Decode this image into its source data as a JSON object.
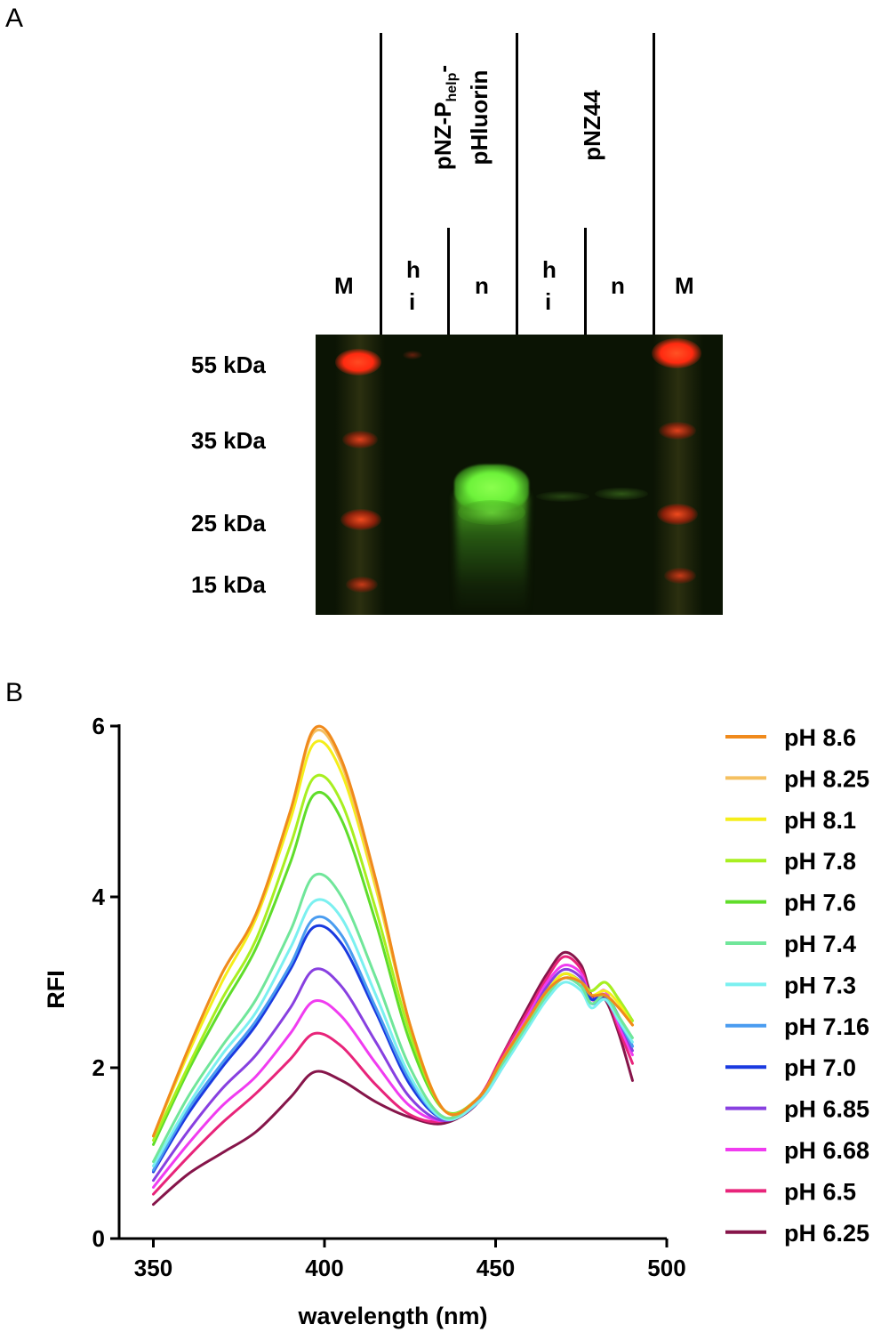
{
  "panelA": {
    "label": "A",
    "construct1": {
      "line1_pre": "pNZ-P",
      "line1_sub": "help",
      "line1_post": "-",
      "line2": "pHluorin"
    },
    "construct2": "pNZ44",
    "lanes": [
      "M",
      "h i",
      "n",
      "h i",
      "n",
      "M"
    ],
    "lane_marker": "M",
    "lane_hi_top": "h",
    "lane_hi_bottom": "i",
    "lane_n": "n",
    "mw_markers": [
      "55 kDa",
      "35 kDa",
      "25 kDa",
      "15 kDa"
    ],
    "colors": {
      "gel_background": "#0b1404",
      "marker_band": "#ff3a1a",
      "gfp_band": "#6dff3a"
    }
  },
  "panelB": {
    "label": "B",
    "chart_data": {
      "type": "line",
      "xlabel": "wavelength (nm)",
      "ylabel": "RFI",
      "xlim": [
        340,
        500
      ],
      "ylim": [
        0,
        6
      ],
      "xticks": [
        350,
        400,
        450,
        500
      ],
      "yticks": [
        0,
        2,
        4,
        6
      ],
      "x_range": [
        350,
        490
      ],
      "grid": false,
      "legend_position": "right",
      "key_x": [
        350,
        360,
        370,
        380,
        390,
        397,
        405,
        415,
        425,
        435,
        445,
        452,
        460,
        465,
        470,
        475,
        478,
        482,
        486,
        490
      ],
      "series": [
        {
          "name": "pH 8.6",
          "color": "#f08a1c",
          "values": [
            1.2,
            2.2,
            3.1,
            3.8,
            5.0,
            5.97,
            5.6,
            4.2,
            2.5,
            1.5,
            1.65,
            2.1,
            2.6,
            2.9,
            3.05,
            3.0,
            2.85,
            2.85,
            2.7,
            2.5
          ]
        },
        {
          "name": "pH 8.25",
          "color": "#f5c060",
          "values": [
            1.2,
            2.2,
            3.1,
            3.8,
            5.0,
            5.93,
            5.55,
            4.15,
            2.5,
            1.5,
            1.65,
            2.1,
            2.6,
            2.9,
            3.05,
            3.0,
            2.85,
            2.85,
            2.7,
            2.5
          ]
        },
        {
          "name": "pH 8.1",
          "color": "#f5ee1a",
          "values": [
            1.2,
            2.15,
            3.0,
            3.75,
            4.9,
            5.8,
            5.45,
            4.1,
            2.5,
            1.5,
            1.65,
            2.1,
            2.6,
            2.9,
            3.1,
            3.0,
            2.85,
            2.9,
            2.75,
            2.5
          ]
        },
        {
          "name": "pH 7.8",
          "color": "#a8ef20",
          "values": [
            1.15,
            2.0,
            2.8,
            3.5,
            4.6,
            5.4,
            5.1,
            3.85,
            2.4,
            1.5,
            1.65,
            2.1,
            2.6,
            2.9,
            3.1,
            3.0,
            2.9,
            3.0,
            2.8,
            2.55
          ]
        },
        {
          "name": "pH 7.6",
          "color": "#5fdd2a",
          "values": [
            1.1,
            1.95,
            2.7,
            3.4,
            4.4,
            5.2,
            4.9,
            3.7,
            2.3,
            1.5,
            1.65,
            2.1,
            2.6,
            2.9,
            3.1,
            3.0,
            2.9,
            3.0,
            2.8,
            2.55
          ]
        },
        {
          "name": "pH 7.4",
          "color": "#70e69a",
          "values": [
            0.9,
            1.65,
            2.25,
            2.8,
            3.6,
            4.25,
            4.0,
            3.05,
            2.0,
            1.42,
            1.65,
            2.05,
            2.55,
            2.85,
            3.05,
            2.95,
            2.75,
            2.85,
            2.6,
            2.35
          ]
        },
        {
          "name": "pH 7.3",
          "color": "#7bf0f0",
          "values": [
            0.85,
            1.55,
            2.15,
            2.65,
            3.4,
            3.95,
            3.75,
            2.85,
            1.9,
            1.4,
            1.6,
            2.0,
            2.5,
            2.8,
            3.0,
            2.9,
            2.7,
            2.8,
            2.55,
            2.3
          ]
        },
        {
          "name": "pH 7.16",
          "color": "#4a9cf0",
          "values": [
            0.8,
            1.5,
            2.05,
            2.55,
            3.2,
            3.75,
            3.55,
            2.7,
            1.85,
            1.4,
            1.6,
            2.0,
            2.55,
            2.85,
            3.05,
            2.95,
            2.75,
            2.8,
            2.55,
            2.25
          ]
        },
        {
          "name": "pH 7.0",
          "color": "#1a3ae0",
          "values": [
            0.78,
            1.45,
            2.0,
            2.5,
            3.15,
            3.65,
            3.45,
            2.65,
            1.8,
            1.4,
            1.6,
            2.05,
            2.6,
            2.9,
            3.1,
            3.0,
            2.8,
            2.85,
            2.6,
            2.25
          ]
        },
        {
          "name": "pH 6.85",
          "color": "#8840e0",
          "values": [
            0.68,
            1.25,
            1.75,
            2.15,
            2.7,
            3.15,
            2.95,
            2.3,
            1.65,
            1.38,
            1.6,
            2.05,
            2.6,
            2.95,
            3.15,
            3.05,
            2.8,
            2.85,
            2.55,
            2.2
          ]
        },
        {
          "name": "pH 6.68",
          "color": "#f03cf0",
          "values": [
            0.6,
            1.1,
            1.55,
            1.9,
            2.4,
            2.78,
            2.6,
            2.05,
            1.55,
            1.38,
            1.6,
            2.1,
            2.65,
            3.0,
            3.2,
            3.1,
            2.8,
            2.9,
            2.5,
            2.15
          ]
        },
        {
          "name": "pH 6.5",
          "color": "#e8247a",
          "values": [
            0.52,
            0.95,
            1.35,
            1.7,
            2.1,
            2.4,
            2.25,
            1.8,
            1.45,
            1.38,
            1.65,
            2.15,
            2.7,
            3.05,
            3.3,
            3.15,
            2.8,
            2.85,
            2.45,
            2.05
          ]
        },
        {
          "name": "pH 6.25",
          "color": "#86154a",
          "values": [
            0.4,
            0.75,
            1.0,
            1.25,
            1.65,
            1.95,
            1.85,
            1.6,
            1.42,
            1.35,
            1.6,
            2.15,
            2.75,
            3.1,
            3.35,
            3.2,
            2.85,
            2.8,
            2.4,
            1.85
          ]
        }
      ]
    }
  }
}
